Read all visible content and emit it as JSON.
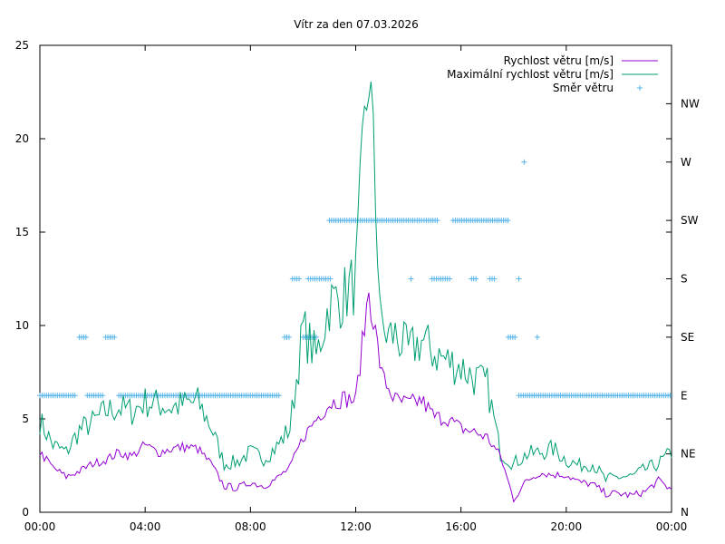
{
  "chart_data": {
    "type": "line",
    "title": "Vítr za den 07.03.2026",
    "xlim": [
      0,
      24
    ],
    "ylim": [
      0,
      25
    ],
    "x_ticks": [
      {
        "value": 0,
        "label": "00:00"
      },
      {
        "value": 4,
        "label": "04:00"
      },
      {
        "value": 8,
        "label": "08:00"
      },
      {
        "value": 12,
        "label": "12:00"
      },
      {
        "value": 16,
        "label": "16:00"
      },
      {
        "value": 20,
        "label": "20:00"
      },
      {
        "value": 24,
        "label": "00:00"
      }
    ],
    "y_ticks": [
      0,
      5,
      10,
      15,
      20,
      25
    ],
    "y2_ticks": [
      {
        "value": 0,
        "label": "N"
      },
      {
        "value": 1,
        "label": "NE"
      },
      {
        "value": 2,
        "label": "E"
      },
      {
        "value": 3,
        "label": "SE"
      },
      {
        "value": 4,
        "label": "S"
      },
      {
        "value": 5,
        "label": "SW"
      },
      {
        "value": 6,
        "label": "W"
      },
      {
        "value": 7,
        "label": "NW"
      }
    ],
    "y2lim": [
      0,
      8
    ],
    "legend_position": "top-right",
    "series": [
      {
        "name": "Rychlost větru [m/s]",
        "color": "#9400d3",
        "kind": "line",
        "points": [
          [
            0,
            3.2
          ],
          [
            0.5,
            2.4
          ],
          [
            1,
            1.9
          ],
          [
            1.5,
            2.2
          ],
          [
            2,
            2.6
          ],
          [
            2.5,
            2.8
          ],
          [
            3,
            3.2
          ],
          [
            3.5,
            3.0
          ],
          [
            4,
            3.6
          ],
          [
            4.5,
            3.2
          ],
          [
            5,
            3.4
          ],
          [
            5.5,
            3.5
          ],
          [
            6,
            3.4
          ],
          [
            6.5,
            2.6
          ],
          [
            7,
            1.4
          ],
          [
            7.5,
            1.3
          ],
          [
            8,
            1.6
          ],
          [
            8.5,
            1.4
          ],
          [
            9,
            1.8
          ],
          [
            9.5,
            2.4
          ],
          [
            10,
            4.0
          ],
          [
            10.5,
            5.0
          ],
          [
            11,
            5.8
          ],
          [
            11.5,
            6.1
          ],
          [
            12,
            6.0
          ],
          [
            12.5,
            11.9
          ],
          [
            13,
            7.3
          ],
          [
            13.5,
            6.0
          ],
          [
            14,
            5.8
          ],
          [
            14.5,
            6.0
          ],
          [
            15,
            5.1
          ],
          [
            15.5,
            5.0
          ],
          [
            16,
            4.5
          ],
          [
            16.5,
            4.3
          ],
          [
            17,
            4.0
          ],
          [
            17.5,
            3.0
          ],
          [
            18,
            0.7
          ],
          [
            18.5,
            1.7
          ],
          [
            19,
            2.1
          ],
          [
            19.5,
            2.0
          ],
          [
            20,
            2.0
          ],
          [
            20.5,
            1.6
          ],
          [
            21,
            1.5
          ],
          [
            21.5,
            1.0
          ],
          [
            22,
            1.0
          ],
          [
            22.5,
            0.9
          ],
          [
            23,
            1.1
          ],
          [
            23.5,
            1.7
          ],
          [
            24,
            1.2
          ]
        ]
      },
      {
        "name": "Maximální rychlost větru [m/s]",
        "color": "#009e73",
        "kind": "line",
        "points": [
          [
            0,
            4.9
          ],
          [
            0.5,
            3.6
          ],
          [
            1,
            3.2
          ],
          [
            1.5,
            4.4
          ],
          [
            2,
            4.8
          ],
          [
            2.5,
            5.4
          ],
          [
            3,
            5.6
          ],
          [
            3.5,
            5.4
          ],
          [
            4,
            5.9
          ],
          [
            4.5,
            5.8
          ],
          [
            5,
            5.6
          ],
          [
            5.5,
            5.8
          ],
          [
            6,
            5.9
          ],
          [
            6.5,
            4.6
          ],
          [
            7,
            2.6
          ],
          [
            7.5,
            2.7
          ],
          [
            8,
            3.2
          ],
          [
            8.5,
            2.9
          ],
          [
            9,
            3.5
          ],
          [
            9.5,
            4.5
          ],
          [
            10,
            9.8
          ],
          [
            10.5,
            8.3
          ],
          [
            11,
            11.2
          ],
          [
            11.5,
            11.5
          ],
          [
            12,
            12.4
          ],
          [
            12.5,
            24.0
          ],
          [
            13,
            9.5
          ],
          [
            13.5,
            9.5
          ],
          [
            14,
            8.6
          ],
          [
            14.5,
            9.2
          ],
          [
            15,
            8.5
          ],
          [
            15.5,
            8.1
          ],
          [
            16,
            7.8
          ],
          [
            16.5,
            7.2
          ],
          [
            17,
            6.8
          ],
          [
            17.5,
            3.2
          ],
          [
            18,
            2.6
          ],
          [
            18.5,
            3.1
          ],
          [
            19,
            3.2
          ],
          [
            19.5,
            3.4
          ],
          [
            20,
            2.8
          ],
          [
            20.5,
            2.5
          ],
          [
            21,
            2.6
          ],
          [
            21.5,
            1.7
          ],
          [
            22,
            1.9
          ],
          [
            22.5,
            1.9
          ],
          [
            23,
            2.3
          ],
          [
            23.5,
            2.6
          ],
          [
            24,
            3.2
          ]
        ]
      },
      {
        "name": "Směr větru",
        "color": "#56b4e9",
        "kind": "points",
        "direction_runs": [
          {
            "from": 0.0,
            "to": 1.4,
            "dir": 2
          },
          {
            "from": 1.5,
            "to": 1.8,
            "dir": 3
          },
          {
            "from": 1.8,
            "to": 2.4,
            "dir": 2
          },
          {
            "from": 2.5,
            "to": 2.9,
            "dir": 3
          },
          {
            "from": 3.0,
            "to": 9.1,
            "dir": 2
          },
          {
            "from": 9.3,
            "to": 9.5,
            "dir": 3
          },
          {
            "from": 9.6,
            "to": 9.9,
            "dir": 4
          },
          {
            "from": 10.0,
            "to": 10.5,
            "dir": 3
          },
          {
            "from": 10.2,
            "to": 11.1,
            "dir": 4
          },
          {
            "from": 11.0,
            "to": 12.0,
            "dir": 5
          },
          {
            "from": 12.0,
            "to": 14.5,
            "dir": 5
          },
          {
            "from": 14.1,
            "to": 14.1,
            "dir": 4
          },
          {
            "from": 14.6,
            "to": 15.1,
            "dir": 5
          },
          {
            "from": 14.9,
            "to": 15.6,
            "dir": 4
          },
          {
            "from": 15.7,
            "to": 17.8,
            "dir": 5
          },
          {
            "from": 16.4,
            "to": 16.6,
            "dir": 4
          },
          {
            "from": 17.1,
            "to": 17.3,
            "dir": 4
          },
          {
            "from": 17.8,
            "to": 18.1,
            "dir": 3
          },
          {
            "from": 18.2,
            "to": 18.2,
            "dir": 4
          },
          {
            "from": 18.4,
            "to": 18.4,
            "dir": 6
          },
          {
            "from": 18.9,
            "to": 18.9,
            "dir": 3
          },
          {
            "from": 18.2,
            "to": 24.0,
            "dir": 2
          }
        ]
      }
    ]
  }
}
